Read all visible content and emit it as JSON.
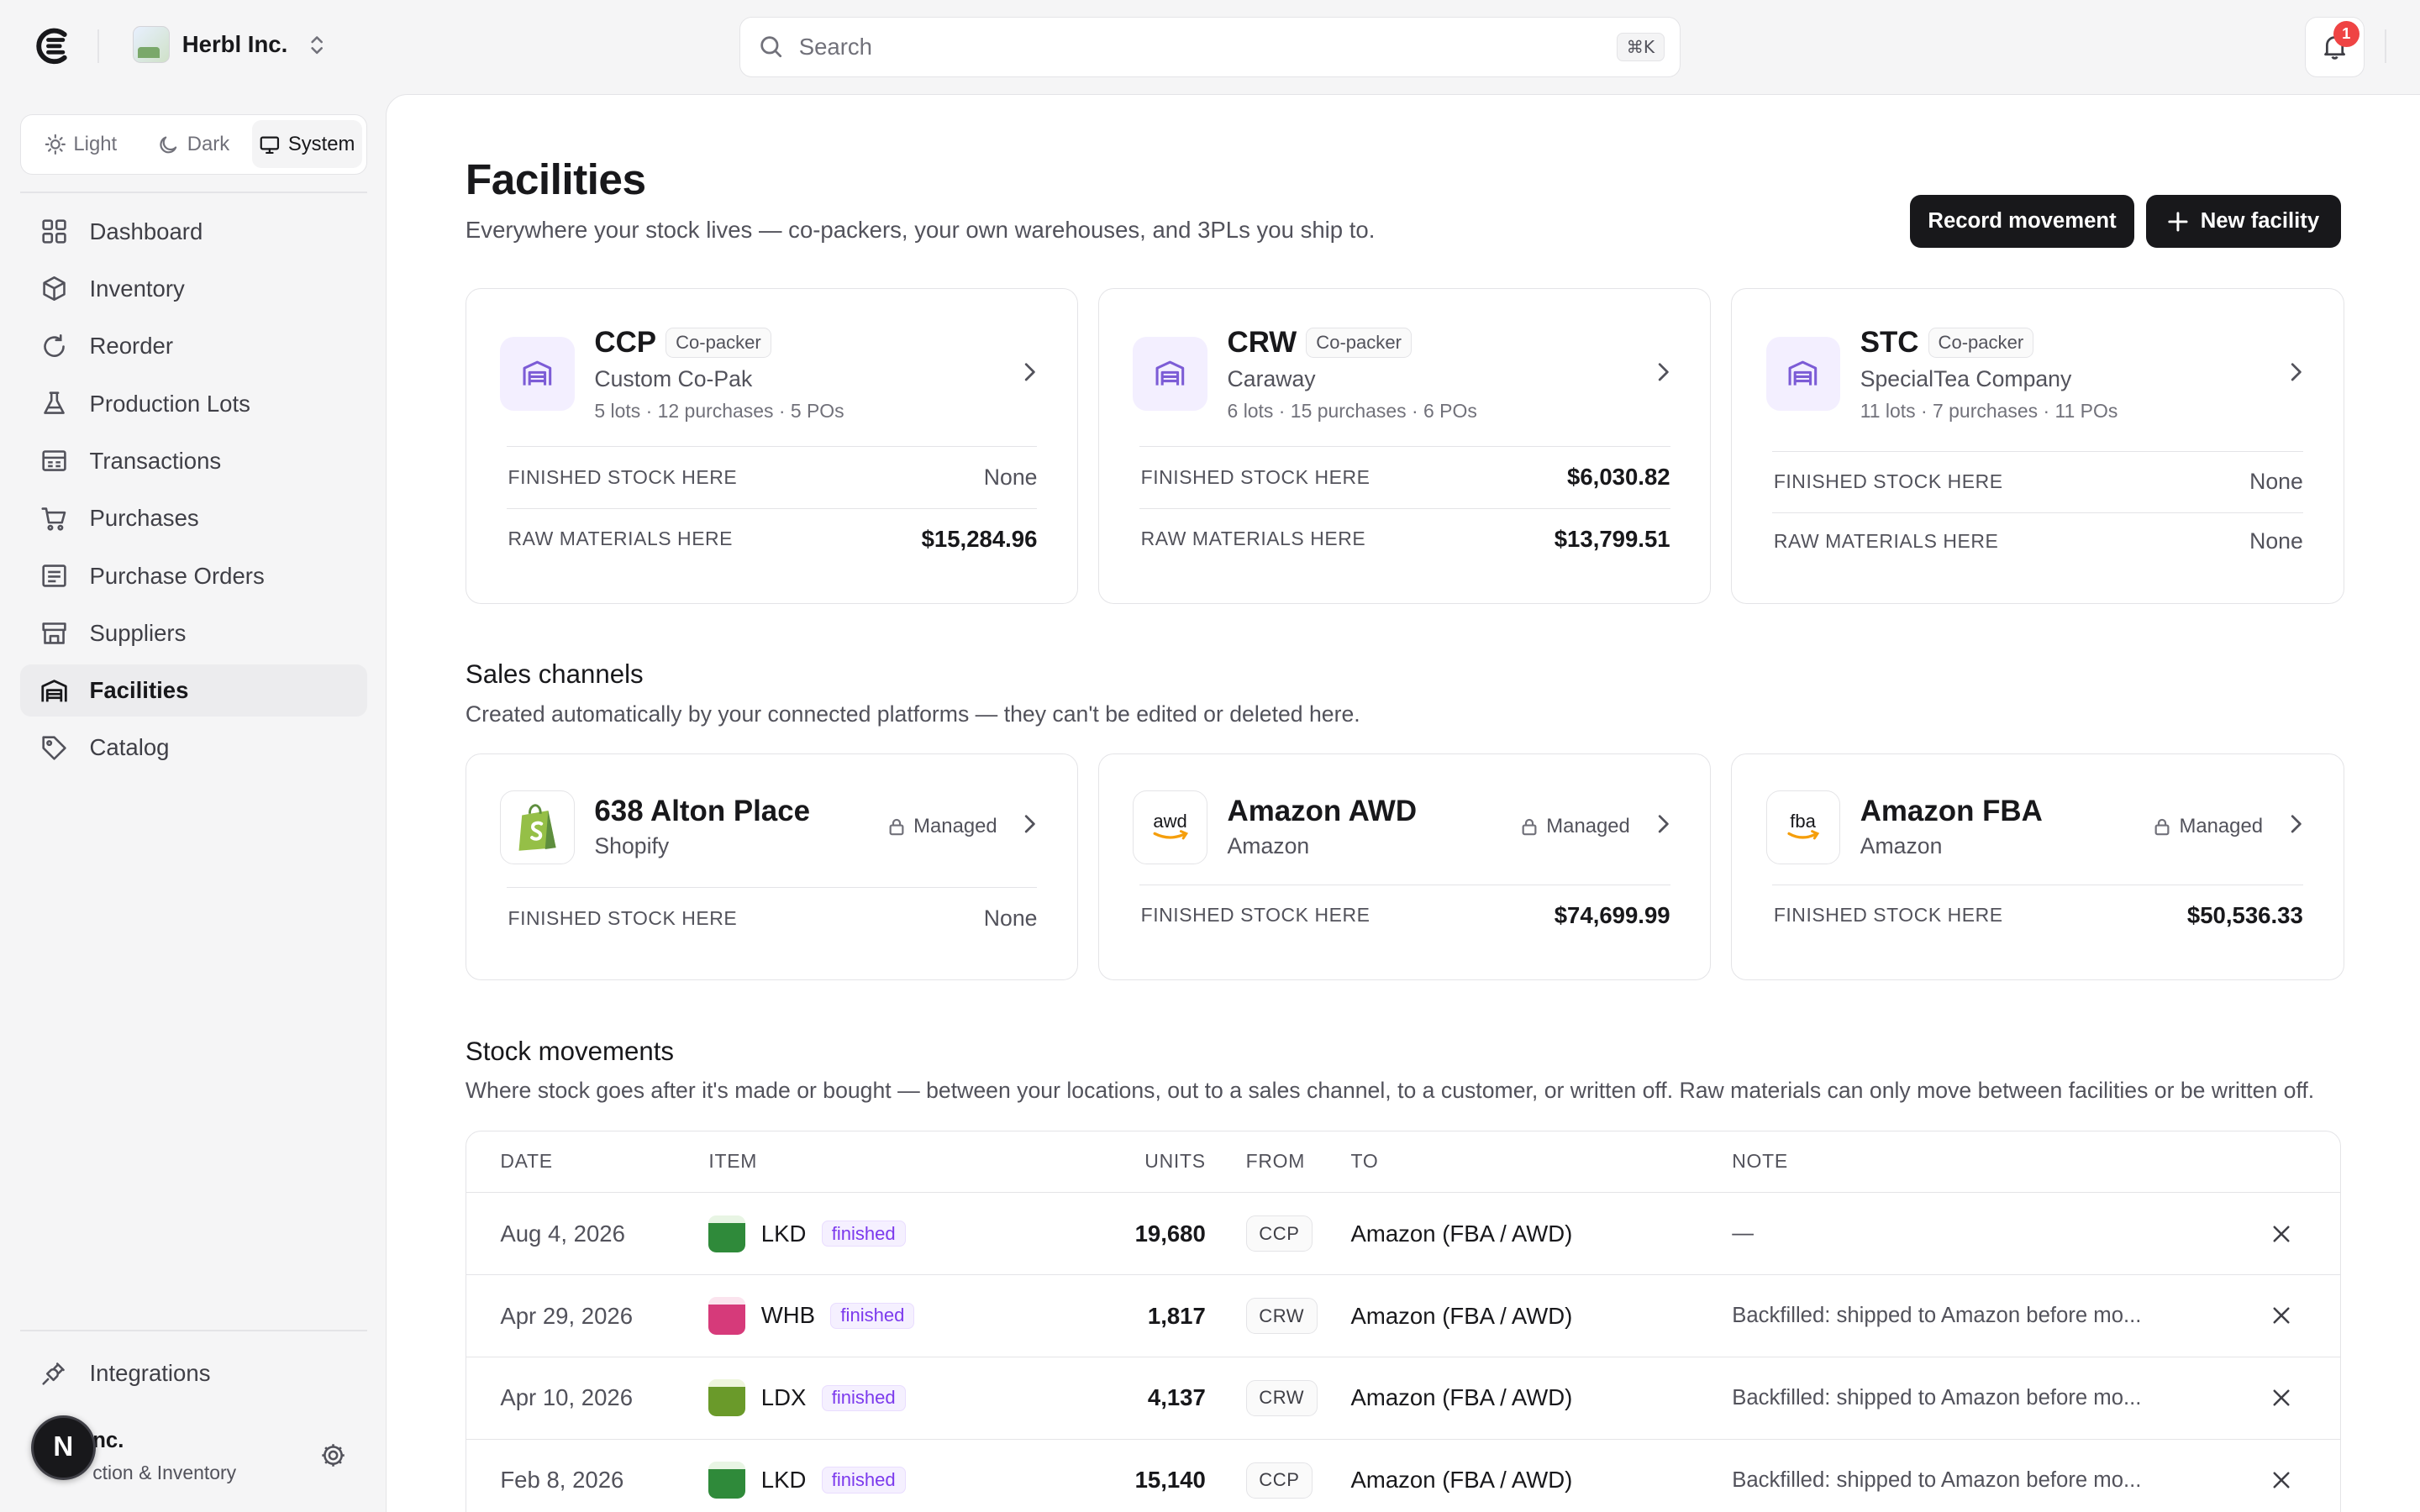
{
  "org": {
    "name": "Herbl Inc."
  },
  "search": {
    "placeholder": "Search",
    "shortcut": "⌘K"
  },
  "notifications": {
    "count": "1"
  },
  "theme": {
    "options": [
      "Light",
      "Dark",
      "System"
    ],
    "selected": "System"
  },
  "sidebar": {
    "items": [
      {
        "label": "Dashboard",
        "icon": "grid-icon"
      },
      {
        "label": "Inventory",
        "icon": "box-icon"
      },
      {
        "label": "Reorder",
        "icon": "refresh-icon"
      },
      {
        "label": "Production Lots",
        "icon": "flask-icon"
      },
      {
        "label": "Transactions",
        "icon": "receipt-icon"
      },
      {
        "label": "Purchases",
        "icon": "cart-icon"
      },
      {
        "label": "Purchase Orders",
        "icon": "document-icon"
      },
      {
        "label": "Suppliers",
        "icon": "store-icon"
      },
      {
        "label": "Facilities",
        "icon": "warehouse-icon",
        "active": true
      },
      {
        "label": "Catalog",
        "icon": "tag-icon"
      }
    ],
    "integrations": "Integrations"
  },
  "user": {
    "name_visible": "nc.",
    "avatar_letter": "N",
    "subtitle_visible": "ction & Inventory"
  },
  "page": {
    "title": "Facilities",
    "subtitle": "Everywhere your stock lives — co-packers, your own warehouses, and 3PLs you ship to.",
    "record_button": "Record movement",
    "new_button": "New facility"
  },
  "facilities": [
    {
      "code": "CCP",
      "type": "Co-packer",
      "name": "Custom Co-Pak",
      "meta": "5 lots · 12 purchases · 5 POs",
      "finished_label": "FINISHED STOCK HERE",
      "finished": "None",
      "raw_label": "RAW MATERIALS HERE",
      "raw": "$15,284.96"
    },
    {
      "code": "CRW",
      "type": "Co-packer",
      "name": "Caraway",
      "meta": "6 lots · 15 purchases · 6 POs",
      "finished_label": "FINISHED STOCK HERE",
      "finished": "$6,030.82",
      "raw_label": "RAW MATERIALS HERE",
      "raw": "$13,799.51"
    },
    {
      "code": "STC",
      "type": "Co-packer",
      "name": "SpecialTea Company",
      "meta": "11 lots · 7 purchases · 11 POs",
      "finished_label": "FINISHED STOCK HERE",
      "finished": "None",
      "raw_label": "RAW MATERIALS HERE",
      "raw": "None"
    }
  ],
  "sales_channels": {
    "title": "Sales channels",
    "subtitle": "Created automatically by your connected platforms — they can't be edited or deleted here.",
    "items": [
      {
        "name": "638 Alton Place",
        "platform": "Shopify",
        "icon": "shopify-icon",
        "managed": "Managed",
        "finished_label": "FINISHED STOCK HERE",
        "finished": "None"
      },
      {
        "name": "Amazon AWD",
        "platform": "Amazon",
        "icon": "awd-icon",
        "icon_text": "awd",
        "managed": "Managed",
        "finished_label": "FINISHED STOCK HERE",
        "finished": "$74,699.99"
      },
      {
        "name": "Amazon FBA",
        "platform": "Amazon",
        "icon": "fba-icon",
        "icon_text": "fba",
        "managed": "Managed",
        "finished_label": "FINISHED STOCK HERE",
        "finished": "$50,536.33"
      }
    ]
  },
  "movements": {
    "title": "Stock movements",
    "subtitle": "Where stock goes after it's made or bought — between your locations, out to a sales channel, to a customer, or written off. Raw materials can only move between facilities or be written off.",
    "columns": {
      "date": "DATE",
      "item": "ITEM",
      "units": "UNITS",
      "from": "FROM",
      "to": "TO",
      "note": "NOTE"
    },
    "rows": [
      {
        "date": "Aug 4, 2026",
        "item": "LKD",
        "tag": "finished",
        "units": "19,680",
        "from": "CCP",
        "to": "Amazon (FBA / AWD)",
        "note": "—",
        "thumb": "#2f8a3a"
      },
      {
        "date": "Apr 29, 2026",
        "item": "WHB",
        "tag": "finished",
        "units": "1,817",
        "from": "CRW",
        "to": "Amazon (FBA / AWD)",
        "note": "Backfilled: shipped to Amazon before mo...",
        "thumb": "#d63a7a"
      },
      {
        "date": "Apr 10, 2026",
        "item": "LDX",
        "tag": "finished",
        "units": "4,137",
        "from": "CRW",
        "to": "Amazon (FBA / AWD)",
        "note": "Backfilled: shipped to Amazon before mo...",
        "thumb": "#6a9a2a"
      },
      {
        "date": "Feb 8, 2026",
        "item": "LKD",
        "tag": "finished",
        "units": "15,140",
        "from": "CCP",
        "to": "Amazon (FBA / AWD)",
        "note": "Backfilled: shipped to Amazon before mo...",
        "thumb": "#2f8a3a"
      }
    ]
  }
}
